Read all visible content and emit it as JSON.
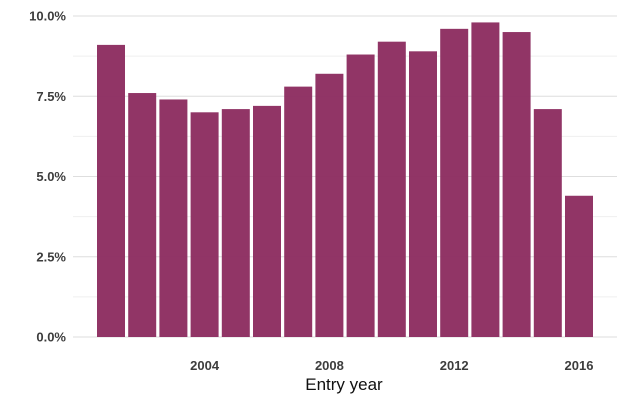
{
  "chart_data": {
    "type": "bar",
    "xlabel": "Entry year",
    "ylabel": "",
    "categories": [
      "2001",
      "2002",
      "2003",
      "2004",
      "2005",
      "2006",
      "2007",
      "2008",
      "2009",
      "2010",
      "2011",
      "2012",
      "2013",
      "2014",
      "2015",
      "2016"
    ],
    "values": [
      9.1,
      7.6,
      7.4,
      7.0,
      7.1,
      7.2,
      7.8,
      8.2,
      8.8,
      9.2,
      8.9,
      9.6,
      9.8,
      9.5,
      7.1,
      4.4
    ],
    "ylim": [
      0,
      10
    ],
    "y_ticks": [
      0,
      2.5,
      5,
      7.5,
      10
    ],
    "y_tick_labels": [
      "0.0%",
      "2.5%",
      "5.0%",
      "7.5%",
      "10.0%"
    ],
    "x_ticks": [
      "2004",
      "2008",
      "2012",
      "2016"
    ],
    "grid": true,
    "bar_color": "#8b2a5e"
  }
}
